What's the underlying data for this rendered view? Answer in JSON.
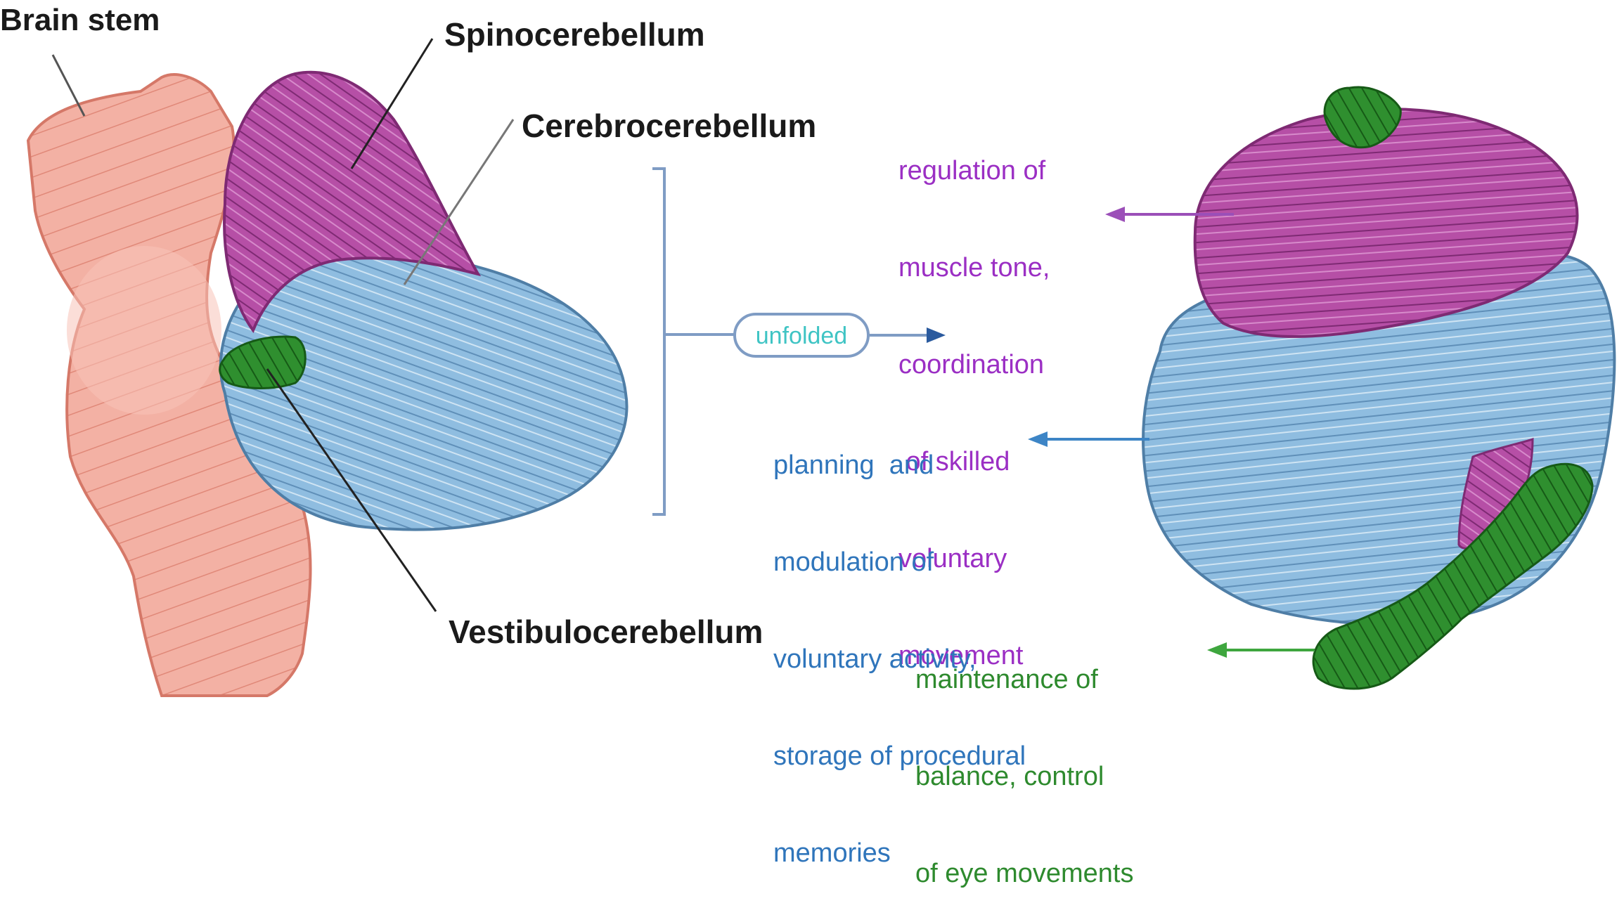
{
  "labels": {
    "brain_stem": "Brain stem",
    "spinocerebellum": "Spinocerebellum",
    "cerebrocerebellum": "Cerebrocerebellum",
    "vestibulocerebellum": "Vestibulocerebellum",
    "unfolded": "unfolded"
  },
  "functions": {
    "spino": [
      "regulation of",
      "muscle tone,",
      "coordination",
      " of skilled",
      "voluntary",
      "movement"
    ],
    "cerebro": [
      "planning  and",
      "modulation of",
      "voluntary activity,",
      "storage of procedural",
      "memories"
    ],
    "vestibulo": [
      "maintenance of",
      "balance, control",
      "of eye movements"
    ]
  },
  "colors": {
    "brain_stem": "#f0a89a",
    "spinocerebellum": "#b0479f",
    "cerebrocerebellum": "#8fbde0",
    "vestibulocerebellum": "#2e8a2e",
    "bracket": "#7f9cc4",
    "pill_text": "#3fc4c4"
  }
}
